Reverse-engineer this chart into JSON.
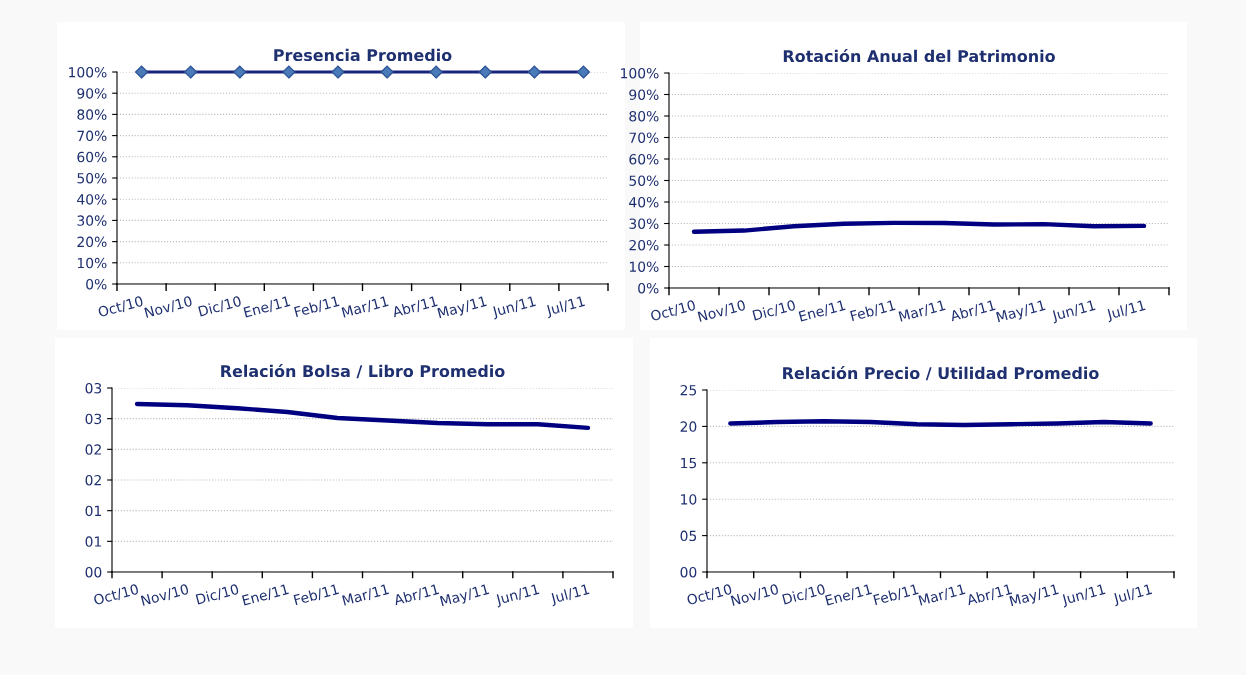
{
  "chart_data": [
    {
      "type": "line",
      "title": "Presencia Promedio",
      "categories": [
        "Oct/10",
        "Nov/10",
        "Dic/10",
        "Ene/11",
        "Feb/11",
        "Mar/11",
        "Abr/11",
        "May/11",
        "Jun/11",
        "Jul/11"
      ],
      "series": [
        {
          "color": "#1a237e",
          "values": [
            100,
            100,
            100,
            100,
            100,
            100,
            100,
            100,
            100,
            100
          ]
        }
      ],
      "ylim": [
        0,
        100
      ],
      "yticks": [
        {
          "value": 0,
          "label": "0%"
        },
        {
          "value": 10,
          "label": "10%"
        },
        {
          "value": 20,
          "label": "20%"
        },
        {
          "value": 30,
          "label": "30%"
        },
        {
          "value": 40,
          "label": "40%"
        },
        {
          "value": 50,
          "label": "50%"
        },
        {
          "value": 60,
          "label": "60%"
        },
        {
          "value": 70,
          "label": "70%"
        },
        {
          "value": 80,
          "label": "80%"
        },
        {
          "value": 90,
          "label": "90%"
        },
        {
          "value": 100,
          "label": "100%"
        }
      ],
      "grid": "y",
      "marker": "diamond",
      "line_style": "solid"
    },
    {
      "type": "line",
      "title": "Rotación Anual del Patrimonio",
      "categories": [
        "Oct/10",
        "Nov/10",
        "Dic/10",
        "Ene/11",
        "Feb/11",
        "Mar/11",
        "Abr/11",
        "May/11",
        "Jun/11",
        "Jul/11"
      ],
      "series": [
        {
          "color": "#000080",
          "values": [
            26.2,
            26.7,
            28.7,
            29.9,
            30.3,
            30.2,
            29.5,
            29.7,
            28.7,
            28.9
          ]
        }
      ],
      "ylim": [
        0,
        100
      ],
      "yticks": [
        {
          "value": 0,
          "label": "0%"
        },
        {
          "value": 10,
          "label": "10%"
        },
        {
          "value": 20,
          "label": "20%"
        },
        {
          "value": 30,
          "label": "30%"
        },
        {
          "value": 40,
          "label": "40%"
        },
        {
          "value": 50,
          "label": "50%"
        },
        {
          "value": 60,
          "label": "60%"
        },
        {
          "value": 70,
          "label": "70%"
        },
        {
          "value": 80,
          "label": "80%"
        },
        {
          "value": 90,
          "label": "90%"
        },
        {
          "value": 100,
          "label": "100%"
        }
      ],
      "grid": "y",
      "line_style": "solid"
    },
    {
      "type": "line",
      "title": "Relación Bolsa / Libro Promedio",
      "categories": [
        "Oct/10",
        "Nov/10",
        "Dic/10",
        "Ene/11",
        "Feb/11",
        "Mar/11",
        "Abr/11",
        "May/11",
        "Jun/11",
        "Jul/11"
      ],
      "series": [
        {
          "color": "#000080",
          "values": [
            2.74,
            2.72,
            2.67,
            2.61,
            2.51,
            2.47,
            2.43,
            2.41,
            2.41,
            2.35
          ]
        }
      ],
      "ylim": [
        0,
        3
      ],
      "yticks": [
        {
          "value": 0,
          "label": "00"
        },
        {
          "value": 0.5,
          "label": "01"
        },
        {
          "value": 1,
          "label": "01"
        },
        {
          "value": 1.5,
          "label": "02"
        },
        {
          "value": 2,
          "label": "02"
        },
        {
          "value": 2.5,
          "label": "03"
        },
        {
          "value": 3,
          "label": "03"
        }
      ],
      "grid": "y",
      "line_style": "solid"
    },
    {
      "type": "line",
      "title": "Relación Precio / Utilidad Promedio",
      "categories": [
        "Oct/10",
        "Nov/10",
        "Dic/10",
        "Ene/11",
        "Feb/11",
        "Mar/11",
        "Abr/11",
        "May/11",
        "Jun/11",
        "Jul/11"
      ],
      "series": [
        {
          "color": "#000080",
          "values": [
            20.4,
            20.6,
            20.7,
            20.6,
            20.3,
            20.2,
            20.3,
            20.4,
            20.6,
            20.4
          ]
        }
      ],
      "ylim": [
        0,
        25
      ],
      "yticks": [
        {
          "value": 0,
          "label": "00"
        },
        {
          "value": 5,
          "label": "05"
        },
        10,
        15,
        20,
        25
      ],
      "grid": "y",
      "line_style": "solid"
    }
  ]
}
